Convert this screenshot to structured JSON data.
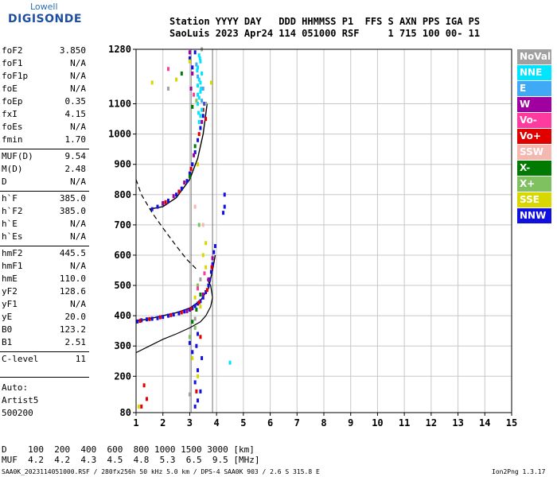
{
  "logo": {
    "top": "Lowell",
    "main": "DIGISONDE"
  },
  "header": {
    "row1": "Station YYYY DAY   DDD HHMMSS P1  FFS S AXN PPS IGA PS",
    "row2": "SaoLuis 2023 Apr24 114 051000 RSF     1 715 100 00- 11"
  },
  "params": [
    {
      "name": "foF2",
      "value": "3.850"
    },
    {
      "name": "foF1",
      "value": "N/A"
    },
    {
      "name": "foF1p",
      "value": "N/A"
    },
    {
      "name": "foE",
      "value": "N/A"
    },
    {
      "name": "foEp",
      "value": "0.35"
    },
    {
      "name": "fxI",
      "value": "4.15"
    },
    {
      "name": "foEs",
      "value": "N/A"
    },
    {
      "name": "fmin",
      "value": "1.70"
    },
    {
      "name": "MUF(D)",
      "value": "9.54"
    },
    {
      "name": "M(D)",
      "value": "2.48"
    },
    {
      "name": "D",
      "value": "N/A"
    },
    {
      "name": "h`F",
      "value": "385.0"
    },
    {
      "name": "h`F2",
      "value": "385.0"
    },
    {
      "name": "h`E",
      "value": "N/A"
    },
    {
      "name": "h`Es",
      "value": "N/A"
    },
    {
      "name": "hmF2",
      "value": "445.5"
    },
    {
      "name": "hmF1",
      "value": "N/A"
    },
    {
      "name": "hmE",
      "value": "110.0"
    },
    {
      "name": "yF2",
      "value": "128.6"
    },
    {
      "name": "yF1",
      "value": "N/A"
    },
    {
      "name": "yE",
      "value": "20.0"
    },
    {
      "name": "B0",
      "value": "123.2"
    },
    {
      "name": "B1",
      "value": "2.51"
    },
    {
      "name": "C-level",
      "value": "11"
    }
  ],
  "auto": {
    "line1": "Auto:",
    "line2": "Artist5",
    "line3": "500200"
  },
  "legend": [
    {
      "label": "NoVal",
      "color": "#a0a0a0"
    },
    {
      "label": "NNE",
      "color": "#00e5ff"
    },
    {
      "label": "E",
      "color": "#3fa9f5"
    },
    {
      "label": "W",
      "color": "#a000a0"
    },
    {
      "label": "Vo-",
      "color": "#ff3ba0"
    },
    {
      "label": "Vo+",
      "color": "#e00000"
    },
    {
      "label": "SSW",
      "color": "#f4b8b0"
    },
    {
      "label": "X-",
      "color": "#007a00"
    },
    {
      "label": "X+",
      "color": "#7fc060"
    },
    {
      "label": "SSE",
      "color": "#d8d800"
    },
    {
      "label": "NNW",
      "color": "#1010e0"
    }
  ],
  "chart_data": {
    "type": "scatter",
    "xlabel": "",
    "ylabel": "",
    "xlim": [
      1,
      15
    ],
    "ylim": [
      80,
      1280
    ],
    "x_ticks": [
      1,
      2,
      3,
      4,
      5,
      6,
      7,
      8,
      9,
      10,
      11,
      12,
      13,
      14,
      15
    ],
    "y_ticks": [
      80,
      200,
      300,
      400,
      500,
      600,
      700,
      800,
      900,
      1000,
      1100,
      1280
    ],
    "fo_markers": [
      3.05,
      3.85
    ],
    "curves": {
      "bottomside_profile": [
        [
          1.0,
          278
        ],
        [
          1.5,
          300
        ],
        [
          2.0,
          322
        ],
        [
          2.5,
          340
        ],
        [
          3.0,
          360
        ],
        [
          3.4,
          380
        ],
        [
          3.6,
          400
        ],
        [
          3.78,
          430
        ],
        [
          3.85,
          460
        ],
        [
          3.78,
          500
        ],
        [
          3.65,
          520
        ]
      ],
      "x_trace_dashed": [
        [
          1.0,
          850
        ],
        [
          1.2,
          800
        ],
        [
          1.6,
          740
        ],
        [
          2.0,
          690
        ],
        [
          2.5,
          630
        ],
        [
          2.9,
          585
        ],
        [
          3.3,
          550
        ]
      ],
      "o_trace_solid_lower": [
        [
          1.0,
          382
        ],
        [
          1.5,
          390
        ],
        [
          2.0,
          400
        ],
        [
          2.5,
          410
        ],
        [
          3.0,
          425
        ],
        [
          3.4,
          450
        ],
        [
          3.7,
          490
        ],
        [
          3.85,
          550
        ],
        [
          3.95,
          600
        ]
      ],
      "o_trace_solid_upper": [
        [
          1.5,
          752
        ],
        [
          2.0,
          760
        ],
        [
          2.5,
          790
        ],
        [
          3.0,
          850
        ],
        [
          3.3,
          920
        ],
        [
          3.5,
          1000
        ],
        [
          3.65,
          1100
        ]
      ]
    },
    "echo_points": [
      {
        "color": "#1010e0",
        "pts": [
          [
            1.05,
            381
          ],
          [
            1.2,
            385
          ],
          [
            1.4,
            388
          ],
          [
            1.6,
            390
          ],
          [
            1.8,
            392
          ],
          [
            2.0,
            396
          ],
          [
            2.2,
            400
          ],
          [
            2.4,
            404
          ],
          [
            2.6,
            408
          ],
          [
            2.8,
            414
          ],
          [
            3.0,
            420
          ],
          [
            3.1,
            425
          ],
          [
            3.2,
            432
          ],
          [
            3.3,
            440
          ],
          [
            3.4,
            448
          ],
          [
            3.5,
            460
          ],
          [
            3.6,
            478
          ],
          [
            3.7,
            500
          ],
          [
            3.75,
            520
          ],
          [
            3.8,
            545
          ],
          [
            3.85,
            570
          ],
          [
            3.9,
            610
          ],
          [
            3.95,
            630
          ],
          [
            1.6,
            752
          ],
          [
            1.8,
            760
          ],
          [
            2.0,
            770
          ],
          [
            2.2,
            780
          ],
          [
            2.5,
            800
          ],
          [
            2.7,
            820
          ],
          [
            2.9,
            845
          ],
          [
            3.0,
            870
          ],
          [
            3.1,
            900
          ],
          [
            3.2,
            940
          ],
          [
            3.3,
            980
          ],
          [
            3.4,
            1020
          ],
          [
            3.5,
            1060
          ],
          [
            3.55,
            1100
          ],
          [
            3.1,
            1220
          ],
          [
            3.0,
            1250
          ],
          [
            3.2,
            1270
          ],
          [
            4.3,
            800
          ],
          [
            4.3,
            760
          ],
          [
            4.25,
            740
          ],
          [
            3.3,
            340
          ],
          [
            3.25,
            300
          ],
          [
            3.3,
            220
          ],
          [
            3.2,
            180
          ],
          [
            3.4,
            150
          ],
          [
            3.3,
            120
          ],
          [
            3.2,
            100
          ],
          [
            3.45,
            260
          ],
          [
            3.0,
            310
          ],
          [
            3.1,
            280
          ]
        ]
      },
      {
        "color": "#e00000",
        "pts": [
          [
            1.15,
            383
          ],
          [
            1.5,
            389
          ],
          [
            1.9,
            395
          ],
          [
            2.3,
            402
          ],
          [
            2.7,
            411
          ],
          [
            3.05,
            423
          ],
          [
            3.35,
            444
          ],
          [
            3.65,
            485
          ],
          [
            3.82,
            560
          ],
          [
            2.1,
            775
          ],
          [
            2.6,
            810
          ],
          [
            3.05,
            885
          ],
          [
            3.35,
            1000
          ],
          [
            3.5,
            1080
          ],
          [
            3.6,
            1050
          ],
          [
            3.25,
            150
          ],
          [
            3.4,
            330
          ],
          [
            1.4,
            125
          ],
          [
            1.2,
            100
          ],
          [
            1.3,
            170
          ]
        ]
      },
      {
        "color": "#00e5ff",
        "pts": [
          [
            3.35,
            1260
          ],
          [
            3.4,
            1240
          ],
          [
            3.3,
            1220
          ],
          [
            3.45,
            1200
          ],
          [
            3.35,
            1180
          ],
          [
            3.3,
            1160
          ],
          [
            3.4,
            1140
          ],
          [
            3.35,
            1120
          ],
          [
            3.3,
            1100
          ],
          [
            3.45,
            1080
          ],
          [
            3.4,
            1060
          ],
          [
            3.35,
            1040
          ],
          [
            3.3,
            1130
          ],
          [
            3.4,
            1170
          ],
          [
            3.28,
            1210
          ],
          [
            3.42,
            1150
          ],
          [
            3.33,
            1070
          ],
          [
            3.38,
            1250
          ],
          [
            4.5,
            245
          ]
        ]
      },
      {
        "color": "#3fa9f5",
        "pts": [
          [
            3.3,
            1190
          ],
          [
            3.45,
            1110
          ],
          [
            3.25,
            1230
          ],
          [
            3.5,
            1150
          ]
        ]
      },
      {
        "color": "#a000a0",
        "pts": [
          [
            3.0,
            1270
          ],
          [
            3.1,
            1200
          ],
          [
            3.05,
            1150
          ],
          [
            2.0,
            772
          ],
          [
            2.4,
            795
          ],
          [
            2.8,
            840
          ],
          [
            3.15,
            930
          ],
          [
            3.45,
            1040
          ],
          [
            3.7,
            520
          ],
          [
            3.85,
            590
          ],
          [
            2.9,
            415
          ],
          [
            3.5,
            470
          ]
        ]
      },
      {
        "color": "#d8d800",
        "pts": [
          [
            2.5,
            1180
          ],
          [
            3.0,
            1240
          ],
          [
            3.3,
            900
          ],
          [
            3.5,
            600
          ],
          [
            3.6,
            560
          ],
          [
            3.2,
            460
          ],
          [
            3.4,
            430
          ],
          [
            1.6,
            1170
          ],
          [
            3.8,
            1170
          ],
          [
            3.3,
            200
          ],
          [
            3.1,
            260
          ],
          [
            1.1,
            100
          ],
          [
            3.6,
            640
          ]
        ]
      },
      {
        "color": "#007a00",
        "pts": [
          [
            3.1,
            380
          ],
          [
            3.25,
            420
          ],
          [
            3.4,
            470
          ],
          [
            3.0,
            860
          ],
          [
            3.2,
            960
          ],
          [
            2.7,
            1200
          ],
          [
            3.1,
            1090
          ]
        ]
      },
      {
        "color": "#7fc060",
        "pts": [
          [
            3.2,
            360
          ],
          [
            3.3,
            500
          ],
          [
            3.0,
            330
          ],
          [
            3.35,
            700
          ],
          [
            3.25,
            1110
          ]
        ]
      },
      {
        "color": "#a0a0a0",
        "pts": [
          [
            3.2,
            390
          ],
          [
            3.4,
            520
          ],
          [
            3.6,
            1100
          ],
          [
            2.2,
            1150
          ],
          [
            3.0,
            140
          ],
          [
            3.45,
            1280
          ]
        ]
      },
      {
        "color": "#ff3ba0",
        "pts": [
          [
            3.3,
            490
          ],
          [
            3.55,
            540
          ],
          [
            3.15,
            1130
          ],
          [
            2.2,
            1215
          ]
        ]
      },
      {
        "color": "#f4b8b0",
        "pts": [
          [
            3.5,
            700
          ],
          [
            3.2,
            760
          ]
        ]
      }
    ]
  },
  "bottom": {
    "d_row": "D    100  200  400  600  800 1000 1500 3000 [km]",
    "muf_row": "MUF  4.2  4.2  4.3  4.5  4.8  5.3  6.5  9.5 [MHz]"
  },
  "footer": {
    "left": "SAA0K_2023114051000.RSF / 280fx256h 50 kHz 5.0 km / DPS-4 SAA0K 903 / 2.6 S 315.8 E",
    "right": "Ion2Png 1.3.17"
  }
}
